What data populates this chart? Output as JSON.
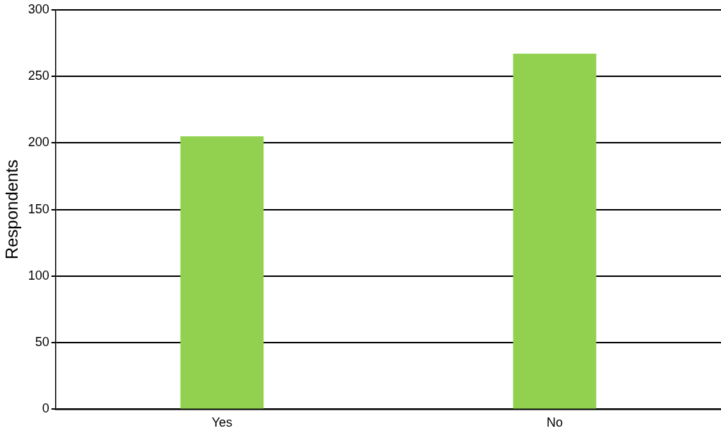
{
  "chart_data": {
    "type": "bar",
    "ylabel": "Respondents",
    "categories": [
      "Yes",
      "No"
    ],
    "values": [
      205,
      267
    ],
    "color": "#92d050",
    "ylim": [
      0,
      300
    ],
    "yticks": [
      0,
      50,
      100,
      150,
      200,
      250,
      300
    ],
    "grid": "y",
    "legend": false
  }
}
